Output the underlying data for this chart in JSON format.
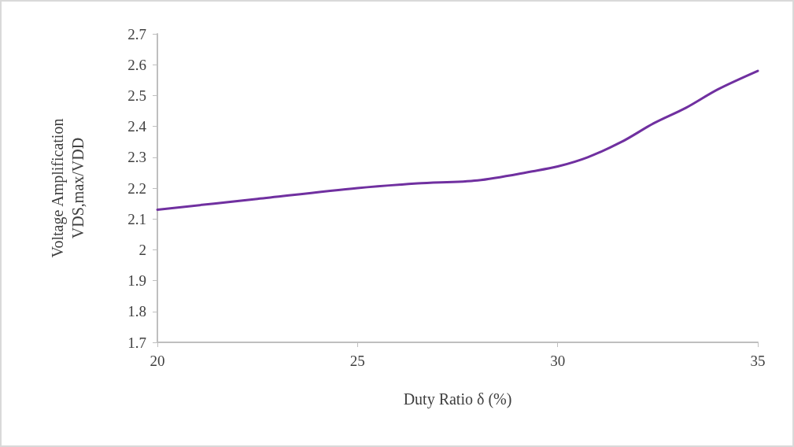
{
  "chart_data": {
    "type": "line",
    "xlabel": "Duty Ratio δ (%)",
    "ylabel": "Voltage Amplification\nVDS,max/VDD",
    "x": [
      20,
      22.5,
      25,
      26.5,
      28,
      29.4,
      30,
      30.75,
      31.6,
      32.4,
      33.2,
      34,
      35
    ],
    "series": [
      {
        "color": "#7030a0",
        "values": [
          2.13,
          2.165,
          2.2,
          2.215,
          2.225,
          2.255,
          2.27,
          2.3,
          2.35,
          2.41,
          2.46,
          2.52,
          2.58
        ]
      }
    ],
    "xlim": [
      20,
      35
    ],
    "xticks": [
      20,
      25,
      30,
      35
    ],
    "ylim": [
      1.7,
      2.7
    ],
    "yticks": [
      1.7,
      1.8,
      1.9,
      2,
      2.1,
      2.2,
      2.3,
      2.4,
      2.5,
      2.6,
      2.7
    ],
    "grid": false,
    "marker": "none",
    "line_style": "solid"
  }
}
